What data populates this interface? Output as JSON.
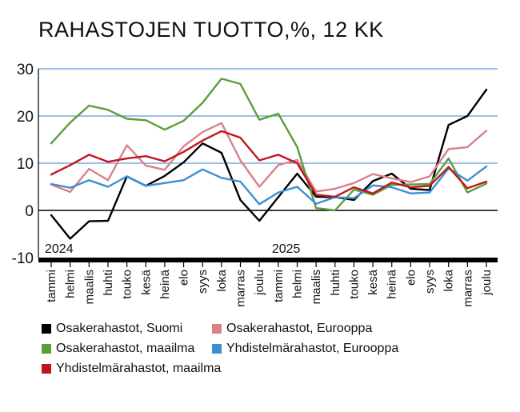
{
  "title": "RAHASTOJEN TUOTTO,%, 12 KK",
  "chart_data": {
    "type": "line",
    "title": "RAHASTOJEN TUOTTO,%, 12 KK",
    "categories": [
      "tammi",
      "helmi",
      "maalis",
      "huhti",
      "touko",
      "kesä",
      "heinä",
      "elo",
      "syys",
      "loka",
      "marras",
      "joulu",
      "tammi",
      "helmi",
      "maalis",
      "huhti",
      "touko",
      "kesä",
      "heinä",
      "elo",
      "syys",
      "loka",
      "marras",
      "joulu"
    ],
    "year_labels": [
      {
        "label": "2024",
        "index": 0
      },
      {
        "label": "2025",
        "index": 12
      }
    ],
    "ylim": [
      -10,
      30
    ],
    "yticks": [
      -10,
      0,
      10,
      20,
      30
    ],
    "grid": true,
    "legend_position": "bottom",
    "series": [
      {
        "name": "Osakerahastot, Suomi",
        "color": "#000000",
        "values": [
          -1,
          -6,
          -2.3,
          -2.2,
          7.2,
          5.2,
          7.3,
          10.2,
          14.2,
          12.2,
          2.2,
          -2.2,
          2.8,
          7.8,
          2.9,
          2.8,
          2.2,
          6.2,
          7.8,
          4.6,
          4.3,
          18.1,
          20,
          25.6
        ]
      },
      {
        "name": "Osakerahastot, Eurooppa",
        "color": "#d9808b",
        "values": [
          5.5,
          3.9,
          8.8,
          6.4,
          13.8,
          9.5,
          8.6,
          13.6,
          16.6,
          18.5,
          10.6,
          5,
          9.6,
          10.7,
          4,
          4.6,
          5.8,
          7.7,
          6.8,
          6,
          7.2,
          13,
          13.4,
          16.9
        ]
      },
      {
        "name": "Osakerahastot, maailma",
        "color": "#5a9e3a",
        "values": [
          14.2,
          18.6,
          22.2,
          21.3,
          19.4,
          19.1,
          17.1,
          19,
          22.8,
          27.9,
          26.8,
          19.2,
          20.5,
          13.4,
          0.5,
          0,
          4.4,
          3.3,
          5.4,
          5.5,
          5.6,
          11,
          3.8,
          5.7
        ]
      },
      {
        "name": "Yhdistelmärahastot, Eurooppa",
        "color": "#3b8fd4",
        "values": [
          5.6,
          4.8,
          6.4,
          5,
          7.2,
          5.2,
          5.8,
          6.4,
          8.7,
          6.9,
          6.1,
          1.3,
          3.8,
          5,
          1.4,
          2.8,
          2.6,
          5.3,
          4.9,
          3.6,
          3.8,
          8.9,
          6.3,
          9.3
        ]
      },
      {
        "name": "Yhdistelmärahastot, maailma",
        "color": "#c0151d",
        "values": [
          7.6,
          9.6,
          11.8,
          10.3,
          11,
          11.5,
          10.4,
          12.4,
          14.8,
          16.8,
          15.4,
          10.6,
          11.8,
          10,
          3.3,
          2.9,
          4.9,
          3.6,
          5.9,
          4.9,
          5.2,
          9.2,
          4.7,
          6.1
        ]
      }
    ]
  },
  "legend_layout": [
    {
      "series": 0,
      "col": 0,
      "row": 0
    },
    {
      "series": 1,
      "col": 1,
      "row": 0
    },
    {
      "series": 2,
      "col": 0,
      "row": 1
    },
    {
      "series": 3,
      "col": 1,
      "row": 1
    },
    {
      "series": 4,
      "col": 0,
      "row": 2
    }
  ]
}
